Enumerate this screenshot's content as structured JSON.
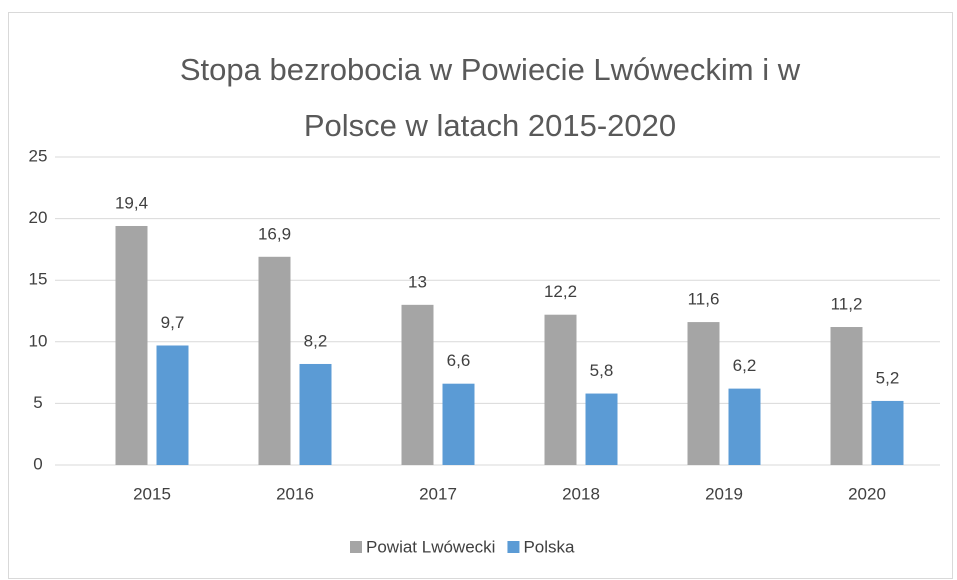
{
  "chart_data": {
    "type": "bar",
    "title": "Stopa bezrobocia w Powiecie Lwóweckim i w Polsce w latach 2015-2020",
    "categories": [
      "2015",
      "2016",
      "2017",
      "2018",
      "2019",
      "2020"
    ],
    "series": [
      {
        "name": "Powiat Lwówecki",
        "color": "#a5a5a5",
        "values": [
          19.4,
          16.9,
          13,
          12.2,
          11.6,
          11.2
        ],
        "value_labels": [
          "19,4",
          "16,9",
          "13",
          "12,2",
          "11,6",
          "11,2"
        ]
      },
      {
        "name": "Polska",
        "color": "#5b9bd5",
        "values": [
          9.7,
          8.2,
          6.6,
          5.8,
          6.2,
          5.2
        ],
        "value_labels": [
          "9,7",
          "8,2",
          "6,6",
          "5,8",
          "6,2",
          "5,2"
        ]
      }
    ],
    "ylim": [
      0,
      25
    ],
    "yticks": [
      0,
      5,
      10,
      15,
      20,
      25
    ],
    "grid": true,
    "legend": "bottom"
  }
}
